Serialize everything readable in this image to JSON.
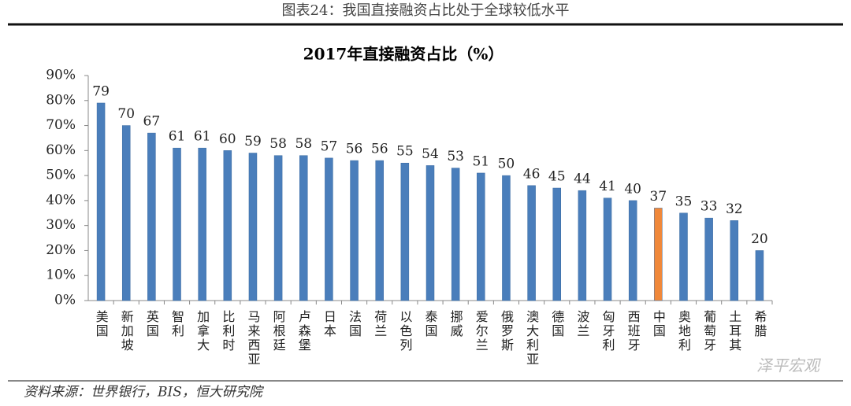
{
  "header": "图表24：我国直接融资占比处于全球较低水平",
  "source": "资料来源：世界银行，BIS，恒大研究院",
  "watermark": "泽平宏观",
  "chart_data": {
    "type": "bar",
    "title": "2017年直接融资占比（%）",
    "categories": [
      "美国",
      "新加坡",
      "英国",
      "智利",
      "加拿大",
      "比利时",
      "马来西亚",
      "阿根廷",
      "卢森堡",
      "日本",
      "法国",
      "荷兰",
      "以色列",
      "泰国",
      "挪威",
      "爱尔兰",
      "俄罗斯",
      "澳大利亚",
      "德国",
      "波兰",
      "匈牙利",
      "西班牙",
      "中国",
      "奥地利",
      "葡萄牙",
      "土耳其",
      "希腊"
    ],
    "values": [
      79,
      70,
      67,
      61,
      61,
      60,
      59,
      58,
      58,
      57,
      56,
      56,
      55,
      54,
      53,
      51,
      50,
      46,
      45,
      44,
      41,
      40,
      37,
      35,
      33,
      32,
      20
    ],
    "colors": [
      "#4a7ebb",
      "#4a7ebb",
      "#4a7ebb",
      "#4a7ebb",
      "#4a7ebb",
      "#4a7ebb",
      "#4a7ebb",
      "#4a7ebb",
      "#4a7ebb",
      "#4a7ebb",
      "#4a7ebb",
      "#4a7ebb",
      "#4a7ebb",
      "#4a7ebb",
      "#4a7ebb",
      "#4a7ebb",
      "#4a7ebb",
      "#4a7ebb",
      "#4a7ebb",
      "#4a7ebb",
      "#4a7ebb",
      "#4a7ebb",
      "#f0883a",
      "#4a7ebb",
      "#4a7ebb",
      "#4a7ebb",
      "#4a7ebb"
    ],
    "ylim": [
      0,
      90
    ],
    "yticks": [
      {
        "value": 0,
        "label": "0%"
      },
      {
        "value": 10,
        "label": "10%"
      },
      {
        "value": 20,
        "label": "20%"
      },
      {
        "value": 30,
        "label": "30%"
      },
      {
        "value": 40,
        "label": "40%"
      },
      {
        "value": 50,
        "label": "50%"
      },
      {
        "value": 60,
        "label": "60%"
      },
      {
        "value": 70,
        "label": "70%"
      },
      {
        "value": 80,
        "label": "80%"
      },
      {
        "value": 90,
        "label": "90%"
      }
    ],
    "grid": false
  }
}
